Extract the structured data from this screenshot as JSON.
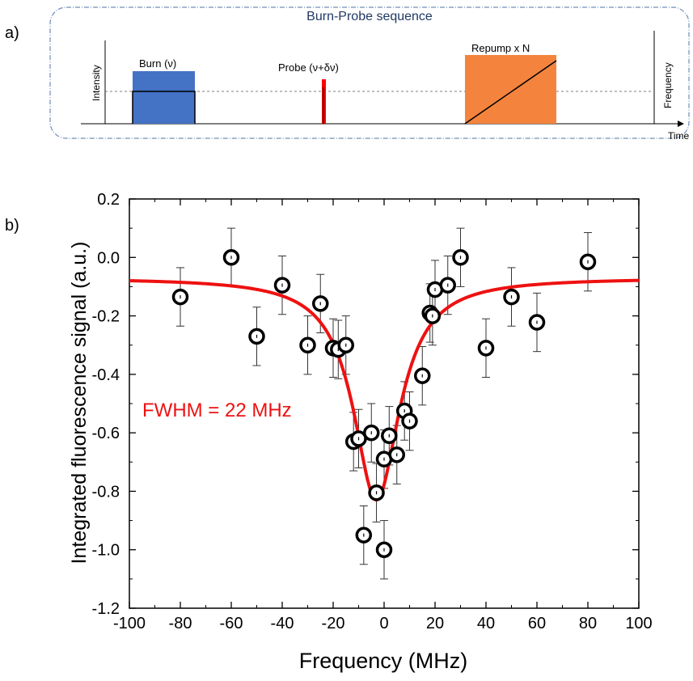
{
  "panel_a": {
    "letter": "a)",
    "title": "Burn-Probe sequence",
    "y_label_left": "Intensity",
    "y_label_right": "Frequency",
    "x_label": "Time",
    "burn_label": "Burn (ν)",
    "probe_label": "Probe (ν+δν)",
    "repump_label": "Repump x N",
    "colors": {
      "border": "#6f8fb8",
      "title": "#1f3864",
      "burn": "#4472c4",
      "probe": "#ff0000",
      "repump": "#f4843d",
      "dashed": "#7f7f7f"
    }
  },
  "panel_b": {
    "letter": "b)",
    "annotation": "FWHM = 22 MHz",
    "colors": {
      "fit": "#ee1111",
      "annotation": "#ee1111",
      "markers": "#000000"
    }
  },
  "chart_data": {
    "type": "scatter",
    "xlabel": "Frequency (MHz)",
    "ylabel": "Integrated fluorescence signal (a.u.)",
    "xlim": [
      -100,
      100
    ],
    "ylim": [
      -1.2,
      0.2
    ],
    "xticks": [
      "-100",
      "-80",
      "-60",
      "-40",
      "-20",
      "0",
      "20",
      "40",
      "60",
      "80",
      "100"
    ],
    "yticks": [
      "0.2",
      "0.0",
      "-0.2",
      "-0.4",
      "-0.6",
      "-0.8",
      "-1.0",
      "-1.2"
    ],
    "grid": false,
    "legend": "none",
    "series": [
      {
        "type": "scatter",
        "x": [
          -80,
          -60,
          -50,
          -40,
          -30,
          -25,
          -20,
          -18,
          -15,
          -12,
          -10,
          -8,
          -5,
          -3,
          0,
          0,
          2,
          5,
          8,
          10,
          15,
          18,
          19,
          20,
          25,
          30,
          40,
          50,
          60,
          80
        ],
        "y": [
          -0.135,
          0.0,
          -0.27,
          -0.095,
          -0.3,
          -0.158,
          -0.31,
          -0.315,
          -0.3,
          -0.63,
          -0.62,
          -0.95,
          -0.6,
          -0.805,
          -0.69,
          -1.0,
          -0.61,
          -0.675,
          -0.525,
          -0.56,
          -0.405,
          -0.19,
          -0.2,
          -0.11,
          -0.095,
          0.0,
          -0.31,
          -0.135,
          -0.222,
          -0.015
        ],
        "error": [
          0.1,
          0.1,
          0.1,
          0.1,
          0.1,
          0.1,
          0.1,
          0.1,
          0.1,
          0.1,
          0.1,
          0.1,
          0.1,
          0.1,
          0.1,
          0.1,
          0.1,
          0.1,
          0.1,
          0.1,
          0.1,
          0.1,
          0.1,
          0.1,
          0.1,
          0.1,
          0.1,
          0.1,
          0.1,
          0.1
        ]
      },
      {
        "type": "line",
        "model": "lorentzian",
        "center": -3,
        "fwhm": 22,
        "baseline": -0.07,
        "depth": 0.76
      }
    ]
  }
}
